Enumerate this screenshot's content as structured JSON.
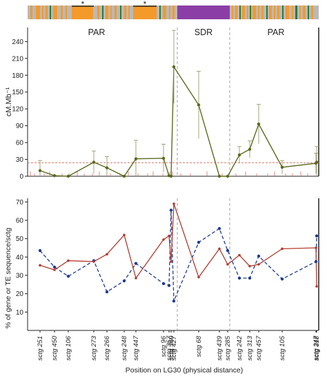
{
  "chart_data": [
    {
      "type": "line",
      "panel": "recombination-rate",
      "ylabel": "cM.Mb⁻¹",
      "ylim": [
        0,
        265
      ],
      "yticks": [
        0,
        30,
        60,
        90,
        120,
        150,
        180,
        210,
        240
      ],
      "region_labels": [
        "PAR",
        "SDR",
        "PAR"
      ],
      "reference_line": 24,
      "top_bar_marks": [
        "*",
        "*"
      ],
      "series": [
        {
          "x": [
            251,
            450,
            106,
            273,
            266,
            248,
            447,
            96,
            357,
            360,
            427,
            68,
            439,
            285,
            242,
            313,
            457,
            105,
            247,
            318
          ],
          "values": [
            10,
            1,
            0,
            25,
            15,
            0,
            31,
            32,
            1,
            0,
            195,
            127,
            0,
            0,
            38,
            48,
            93,
            16,
            23,
            25
          ],
          "errors": [
            18,
            0,
            0,
            20,
            20,
            0,
            33,
            25,
            5,
            0,
            65,
            60,
            0,
            0,
            15,
            15,
            35,
            12,
            18,
            28
          ]
        }
      ]
    },
    {
      "type": "line",
      "panel": "gene-te-content",
      "ylabel": "% of gene or TE sequence/sctg",
      "ylim": [
        0,
        72
      ],
      "yticks": [
        10,
        20,
        30,
        40,
        50,
        60,
        70
      ],
      "series": [
        {
          "x": [
            251,
            450,
            106,
            273,
            266,
            248,
            447,
            96,
            357,
            360,
            427,
            68,
            439,
            285,
            242,
            313,
            457,
            105,
            247,
            318
          ],
          "values": [
            35.5,
            33,
            38,
            37.5,
            41.5,
            52,
            28.5,
            49.5,
            51.5,
            37.5,
            69,
            29,
            44.5,
            36,
            41,
            35,
            36,
            44.5,
            45,
            24
          ]
        },
        {
          "x": [
            251,
            450,
            106,
            273,
            266,
            248,
            447,
            96,
            357,
            360,
            427,
            68,
            439,
            285,
            242,
            313,
            457,
            105,
            247,
            318
          ],
          "values": [
            43.5,
            34.5,
            29.5,
            38,
            21,
            27,
            36.5,
            25.5,
            24.5,
            65.5,
            16,
            48,
            55.5,
            43.5,
            28.5,
            28.5,
            40.5,
            28,
            37.5,
            51.5
          ]
        }
      ],
      "categories": [
        "sctg 251",
        "sctg 450",
        "sctg 106",
        "sctg 273",
        "sctg 266",
        "sctg 248",
        "sctg 447",
        "sctg 96",
        "sctg 357",
        "sctg 360",
        "sctg 427",
        "sctg 68",
        "sctg 439",
        "sctg 285",
        "sctg 242",
        "sctg 313",
        "sctg 457",
        "sctg 105",
        "sctg 247",
        "sctg 318"
      ],
      "xlabel": "Position on LG30 (physical distance)"
    }
  ],
  "colors": {
    "rate_line": "#5a6a1e",
    "reference_line": "#e0695a",
    "gene_line": "#b23a2e",
    "te_line": "#1f3a93",
    "sdr_bar": "#8b3fa6",
    "bar_gray": "#b9b9b9",
    "bar_orange": "#f39a2b",
    "bar_green": "#2e7a3a",
    "divider": "#a0a0a0"
  }
}
